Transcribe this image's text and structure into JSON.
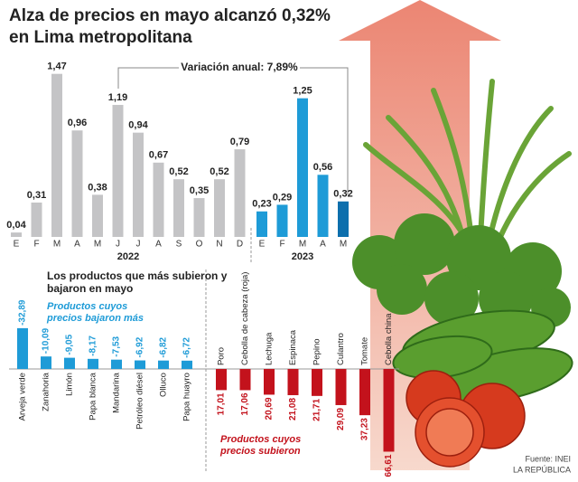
{
  "chart_data": [
    {
      "type": "bar",
      "title": "Alza de precios en mayo alcanzó 0,32% en Lima metropolitana",
      "annotation": "Variación anual: 7,89%",
      "categories": [
        "E",
        "F",
        "M",
        "A",
        "M",
        "J",
        "J",
        "A",
        "S",
        "O",
        "N",
        "D",
        "E",
        "F",
        "M",
        "A",
        "M"
      ],
      "series": [
        {
          "name": "2022",
          "color": "#c4c4c6",
          "values": [
            0.04,
            0.31,
            1.47,
            0.96,
            0.38,
            1.19,
            0.94,
            0.67,
            0.52,
            0.35,
            0.52,
            0.79,
            null,
            null,
            null,
            null,
            null
          ],
          "value_labels": [
            "0,04",
            "0,31",
            "1,47",
            "0,96",
            "0,38",
            "1,19",
            "0,94",
            "0,67",
            "0,52",
            "0,35",
            "0,52",
            "0,79",
            null,
            null,
            null,
            null,
            null
          ]
        },
        {
          "name": "2023",
          "colors": [
            "#1e9bd7",
            "#1e9bd7",
            "#1e9bd7",
            "#1e9bd7",
            "#0d6fad"
          ],
          "values": [
            null,
            null,
            null,
            null,
            null,
            null,
            null,
            null,
            null,
            null,
            null,
            null,
            0.23,
            0.29,
            1.25,
            0.56,
            0.32
          ],
          "value_labels": [
            null,
            null,
            null,
            null,
            null,
            null,
            null,
            null,
            null,
            null,
            null,
            null,
            "0,23",
            "0,29",
            "1,25",
            "0,56",
            "0,32"
          ]
        }
      ],
      "ylim": [
        0,
        1.5
      ]
    },
    {
      "type": "bar",
      "subtitle": "Los productos que más subieron y bajaron en mayo",
      "y_inverted": true,
      "categories": [
        "Arveja verde",
        "Zanahoria",
        "Limón",
        "Papa blanca",
        "Mandarina",
        "Petróleo diésel",
        "Olluco",
        "Papa huayro",
        "Poro",
        "Cebolla de cabeza (roja)",
        "Lechuga",
        "Espinaca",
        "Pepino",
        "Culantro",
        "Tomate",
        "Cebolla china"
      ],
      "series": [
        {
          "name": "Productos cuyos precios bajaron más",
          "color": "#1e9bd7",
          "values": [
            -32.89,
            -10.09,
            -9.05,
            -8.17,
            -7.53,
            -6.92,
            -6.82,
            -6.72,
            null,
            null,
            null,
            null,
            null,
            null,
            null,
            null
          ],
          "value_labels": [
            "-32,89",
            "-10,09",
            "-9,05",
            "-8,17",
            "-7,53",
            "-6,92",
            "-6,82",
            "-6,72",
            null,
            null,
            null,
            null,
            null,
            null,
            null,
            null
          ]
        },
        {
          "name": "Productos cuyos precios subieron",
          "color": "#c3121c",
          "values": [
            null,
            null,
            null,
            null,
            null,
            null,
            null,
            null,
            17.01,
            17.06,
            20.69,
            21.08,
            21.71,
            29.09,
            37.23,
            66.61
          ],
          "value_labels": [
            null,
            null,
            null,
            null,
            null,
            null,
            null,
            null,
            "17,01",
            "17,06",
            "20,69",
            "21,08",
            "21,71",
            "29,09",
            "37,23",
            "66,61"
          ]
        }
      ],
      "ylim": [
        -35,
        67
      ]
    }
  ],
  "source": "Fuente: INEI",
  "credit": "LA REPÚBLICA"
}
